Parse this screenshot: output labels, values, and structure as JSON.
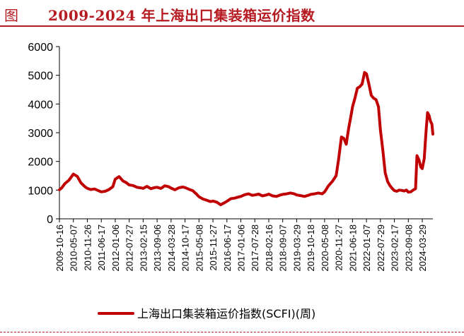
{
  "header": {
    "label": "图",
    "title": "2009-2024 年上海出口集装箱运价指数"
  },
  "colors": {
    "accent": "#b61b22",
    "series": "#c00000",
    "axis": "#000000"
  },
  "chart_data": {
    "type": "line",
    "title": "2009-2024 年上海出口集装箱运价指数",
    "xlabel": "",
    "ylabel": "",
    "ylim": [
      0,
      6000
    ],
    "yticks": [
      0,
      1000,
      2000,
      3000,
      4000,
      5000,
      6000
    ],
    "ytick_labels": [
      "0",
      "1000",
      "2000",
      "3000",
      "4000",
      "5000",
      "6000"
    ],
    "xlim": [
      "2009-10-16",
      "2024-08-30"
    ],
    "xtick_labels": [
      "2009-10-16",
      "2010-05-07",
      "2010-11-26",
      "2011-06-17",
      "2012-01-06",
      "2012-07-27",
      "2013-02-15",
      "2013-09-06",
      "2014-03-28",
      "2014-10-17",
      "2015-05-08",
      "2015-11-27",
      "2016-06-17",
      "2017-01-06",
      "2017-07-28",
      "2018-02-16",
      "2018-09-07",
      "2019-03-29",
      "2019-10-18",
      "2020-05-08",
      "2020-11-27",
      "2021-06-18",
      "2022-01-07",
      "2022-07-29",
      "2023-02-17",
      "2023-09-08",
      "2024-03-29"
    ],
    "grid": false,
    "legend": "bottom",
    "series": [
      {
        "name": "上海出口集装箱运价指数(SCFI)(周)",
        "x": [
          "2009-10-16",
          "2009-11-20",
          "2010-01-01",
          "2010-03-05",
          "2010-05-07",
          "2010-07-02",
          "2010-08-27",
          "2010-10-22",
          "2010-11-26",
          "2011-01-14",
          "2011-03-11",
          "2011-05-06",
          "2011-06-17",
          "2011-08-12",
          "2011-10-07",
          "2011-12-02",
          "2012-01-06",
          "2012-03-02",
          "2012-04-27",
          "2012-06-15",
          "2012-07-27",
          "2012-09-21",
          "2012-11-16",
          "2013-01-11",
          "2013-02-15",
          "2013-04-12",
          "2013-06-07",
          "2013-08-02",
          "2013-09-06",
          "2013-11-01",
          "2013-12-27",
          "2014-02-21",
          "2014-03-28",
          "2014-05-23",
          "2014-07-18",
          "2014-09-12",
          "2014-10-17",
          "2014-12-12",
          "2015-02-06",
          "2015-04-03",
          "2015-05-08",
          "2015-07-03",
          "2015-08-28",
          "2015-10-23",
          "2015-11-27",
          "2016-01-22",
          "2016-03-18",
          "2016-05-13",
          "2016-06-17",
          "2016-08-12",
          "2016-10-07",
          "2016-12-02",
          "2017-01-06",
          "2017-03-03",
          "2017-04-28",
          "2017-06-23",
          "2017-07-28",
          "2017-09-22",
          "2017-11-17",
          "2018-01-12",
          "2018-02-16",
          "2018-04-13",
          "2018-06-08",
          "2018-08-03",
          "2018-09-07",
          "2018-11-02",
          "2018-12-28",
          "2019-02-22",
          "2019-03-29",
          "2019-05-24",
          "2019-07-19",
          "2019-09-13",
          "2019-10-18",
          "2019-12-13",
          "2020-02-07",
          "2020-04-03",
          "2020-05-08",
          "2020-07-03",
          "2020-08-28",
          "2020-10-23",
          "2020-11-27",
          "2021-01-08",
          "2021-02-12",
          "2021-03-19",
          "2021-04-23",
          "2021-05-28",
          "2021-06-18",
          "2021-07-23",
          "2021-08-27",
          "2021-10-01",
          "2021-11-05",
          "2021-12-10",
          "2022-01-07",
          "2022-02-11",
          "2022-03-18",
          "2022-04-22",
          "2022-05-27",
          "2022-07-01",
          "2022-07-29",
          "2022-09-02",
          "2022-10-07",
          "2022-11-11",
          "2022-12-16",
          "2023-01-20",
          "2023-02-17",
          "2023-03-24",
          "2023-04-28",
          "2023-06-02",
          "2023-07-07",
          "2023-08-11",
          "2023-09-08",
          "2023-10-13",
          "2023-11-17",
          "2023-12-22",
          "2024-01-12",
          "2024-02-09",
          "2024-03-08",
          "2024-03-29",
          "2024-04-26",
          "2024-05-24",
          "2024-06-14",
          "2024-07-05",
          "2024-07-26",
          "2024-08-16",
          "2024-08-30"
        ],
        "values": [
          1010,
          1080,
          1220,
          1350,
          1560,
          1480,
          1250,
          1120,
          1060,
          1020,
          1040,
          980,
          940,
          960,
          1020,
          1120,
          1380,
          1470,
          1320,
          1260,
          1180,
          1160,
          1100,
          1080,
          1060,
          1130,
          1050,
          1090,
          1100,
          1060,
          1150,
          1120,
          1070,
          1010,
          1080,
          1110,
          1090,
          1030,
          980,
          860,
          770,
          690,
          650,
          600,
          620,
          580,
          490,
          560,
          610,
          700,
          720,
          760,
          780,
          840,
          870,
          820,
          830,
          860,
          800,
          830,
          860,
          800,
          780,
          830,
          850,
          870,
          900,
          870,
          830,
          810,
          780,
          820,
          850,
          870,
          900,
          870,
          940,
          1150,
          1300,
          1500,
          2050,
          2850,
          2800,
          2600,
          3150,
          3600,
          3900,
          4200,
          4550,
          4600,
          4700,
          5100,
          5050,
          4700,
          4300,
          4200,
          4150,
          3900,
          3100,
          2400,
          1600,
          1300,
          1150,
          1050,
          980,
          960,
          1000,
          990,
          970,
          1000,
          930,
          940,
          1000,
          1050,
          2200,
          2050,
          1800,
          1750,
          2100,
          3100,
          3700,
          3600,
          3400,
          3300,
          2950
        ]
      }
    ]
  }
}
